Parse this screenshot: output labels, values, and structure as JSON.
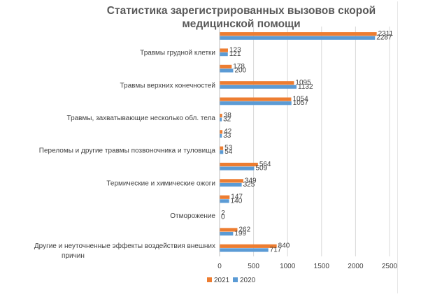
{
  "chart_data": {
    "type": "bar",
    "orientation": "horizontal",
    "title_lines": [
      "Статистика зарегистрированных вызовов скорой",
      "медицинской помощи"
    ],
    "xlim": [
      0,
      2500
    ],
    "xticks": [
      0,
      500,
      1000,
      1500,
      2000,
      2500
    ],
    "grid": true,
    "legend_position": "bottom",
    "colors": {
      "2021": "#ed7d31",
      "2020": "#5b9bd5"
    },
    "categories": [
      {
        "label_lines": [],
        "values": [
          2311,
          2287
        ]
      },
      {
        "label_lines": [
          "Травмы грудной клетки"
        ],
        "values": [
          123,
          121
        ]
      },
      {
        "label_lines": [],
        "values": [
          178,
          200
        ]
      },
      {
        "label_lines": [
          "Травмы верхних конечностей"
        ],
        "values": [
          1095,
          1132
        ]
      },
      {
        "label_lines": [],
        "values": [
          1054,
          1057
        ]
      },
      {
        "label_lines": [
          "Травмы, захватывающие несколько обл. тела"
        ],
        "values": [
          38,
          32
        ]
      },
      {
        "label_lines": [],
        "values": [
          42,
          33
        ]
      },
      {
        "label_lines": [
          "Переломы и другие травмы позвоночника и туловища"
        ],
        "values": [
          53,
          54
        ]
      },
      {
        "label_lines": [],
        "values": [
          564,
          509
        ]
      },
      {
        "label_lines": [
          "Термические и химические ожоги"
        ],
        "values": [
          349,
          325
        ]
      },
      {
        "label_lines": [],
        "values": [
          147,
          140
        ]
      },
      {
        "label_lines": [
          "Отморожение"
        ],
        "values": [
          2,
          0
        ]
      },
      {
        "label_lines": [],
        "values": [
          262,
          199
        ]
      },
      {
        "label_lines": [
          "Другие и неуточненные эффекты воздействия внешних",
          "причин"
        ],
        "values": [
          840,
          717
        ]
      }
    ],
    "series": [
      {
        "name": "2021"
      },
      {
        "name": "2020"
      }
    ]
  }
}
